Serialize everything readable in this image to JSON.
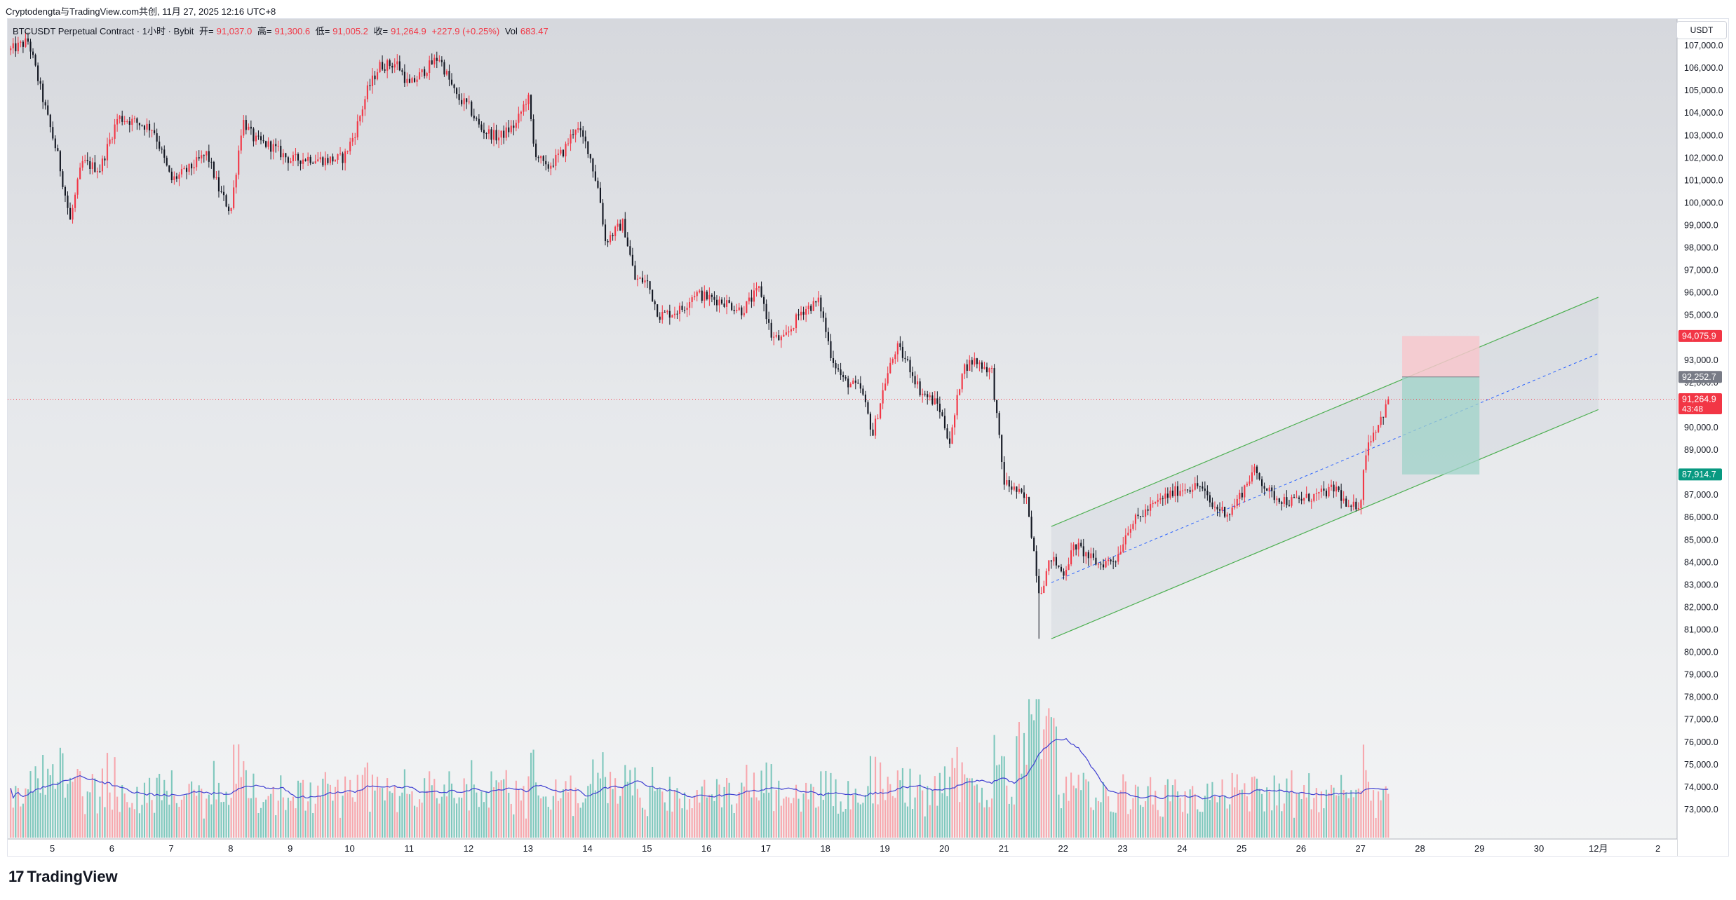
{
  "header": {
    "attribution": "Cryptodengta与TradingView.com共创, 11月 27, 2025 12:16 UTC+8"
  },
  "legend": {
    "symbol": "BTCUSDT Perpetual Contract · 1小时 · Bybit",
    "open_label": "开=",
    "open_value": "91,037.0",
    "high_label": "高=",
    "high_value": "91,300.6",
    "low_label": "低=",
    "low_value": "91,005.2",
    "close_label": "收=",
    "close_value": "91,264.9",
    "change": "+227.9 (+0.25%)",
    "vol_label": "Vol",
    "vol_value": "683.47"
  },
  "currency_button": "USDT",
  "brand": {
    "logo": "17",
    "name": "TradingView"
  },
  "price_tags": {
    "stop": {
      "text": "94,075.9",
      "value": 94075.9,
      "color": "#f23645"
    },
    "entry": {
      "text": "92,252.7",
      "value": 92252.7,
      "color": "#787b86"
    },
    "last": {
      "text": "91,264.9",
      "countdown": "43:48",
      "value": 91264.9,
      "color": "#f23645"
    },
    "target": {
      "text": "87,914.7",
      "value": 87914.7,
      "color": "#089981"
    }
  },
  "colors": {
    "up": "#f23645",
    "down": "#131722",
    "vol_up": "#f7a7ad",
    "vol_down": "#7fc8bd",
    "vol_ma": "#3f3fd1",
    "channel": "#4caf50",
    "stop_zone": "#f7c7cc",
    "target_zone": "#9fd3c8"
  },
  "chart_data": {
    "type": "candlestick",
    "timeframe": "1小时",
    "symbol": "BTCUSDT",
    "ylim": [
      72500,
      108000
    ],
    "y_ticks": [
      73000,
      74000,
      75000,
      76000,
      77000,
      78000,
      79000,
      80000,
      81000,
      82000,
      83000,
      84000,
      85000,
      86000,
      87000,
      88000,
      89000,
      90000,
      91000,
      92000,
      93000,
      94000,
      95000,
      96000,
      97000,
      98000,
      99000,
      100000,
      101000,
      102000,
      103000,
      104000,
      105000,
      106000,
      107000
    ],
    "x_ticks": [
      "5",
      "6",
      "7",
      "8",
      "9",
      "10",
      "11",
      "12",
      "13",
      "14",
      "15",
      "16",
      "17",
      "18",
      "19",
      "20",
      "21",
      "22",
      "23",
      "24",
      "25",
      "26",
      "27",
      "28",
      "29",
      "30",
      "12月",
      "2"
    ],
    "x_tick_days": [
      5,
      6,
      7,
      8,
      9,
      10,
      11,
      12,
      13,
      14,
      15,
      16,
      17,
      18,
      19,
      20,
      21,
      22,
      23,
      24,
      25,
      26,
      27,
      28,
      29,
      30,
      31,
      32
    ],
    "xlim_days": [
      4.25,
      32.3
    ],
    "price_path": [
      [
        4.3,
        106800
      ],
      [
        4.6,
        107200
      ],
      [
        4.9,
        104000
      ],
      [
        5.1,
        102000
      ],
      [
        5.3,
        99200
      ],
      [
        5.5,
        101800
      ],
      [
        5.8,
        101500
      ],
      [
        6.1,
        103800
      ],
      [
        6.4,
        103600
      ],
      [
        6.7,
        103300
      ],
      [
        7.0,
        101000
      ],
      [
        7.3,
        101500
      ],
      [
        7.6,
        102200
      ],
      [
        7.8,
        100600
      ],
      [
        8.0,
        99600
      ],
      [
        8.2,
        103700
      ],
      [
        8.4,
        102800
      ],
      [
        8.7,
        102500
      ],
      [
        9.0,
        101900
      ],
      [
        9.3,
        102000
      ],
      [
        9.6,
        101900
      ],
      [
        9.9,
        102000
      ],
      [
        10.1,
        103200
      ],
      [
        10.3,
        105000
      ],
      [
        10.5,
        106100
      ],
      [
        10.8,
        106200
      ],
      [
        11.0,
        105200
      ],
      [
        11.3,
        106000
      ],
      [
        11.5,
        106500
      ],
      [
        11.8,
        104700
      ],
      [
        12.0,
        104300
      ],
      [
        12.2,
        103300
      ],
      [
        12.5,
        102900
      ],
      [
        12.8,
        103500
      ],
      [
        13.0,
        104800
      ],
      [
        13.1,
        102400
      ],
      [
        13.3,
        101500
      ],
      [
        13.6,
        102300
      ],
      [
        13.8,
        103400
      ],
      [
        14.0,
        102500
      ],
      [
        14.2,
        100400
      ],
      [
        14.3,
        98300
      ],
      [
        14.6,
        99100
      ],
      [
        14.8,
        96600
      ],
      [
        15.0,
        96500
      ],
      [
        15.2,
        95000
      ],
      [
        15.4,
        95100
      ],
      [
        15.6,
        95300
      ],
      [
        15.8,
        96000
      ],
      [
        16.0,
        95800
      ],
      [
        16.3,
        95600
      ],
      [
        16.6,
        95200
      ],
      [
        16.9,
        96200
      ],
      [
        17.1,
        94000
      ],
      [
        17.3,
        93900
      ],
      [
        17.6,
        95200
      ],
      [
        17.9,
        95600
      ],
      [
        18.1,
        93200
      ],
      [
        18.3,
        92100
      ],
      [
        18.6,
        91700
      ],
      [
        18.8,
        89700
      ],
      [
        19.0,
        92000
      ],
      [
        19.2,
        93600
      ],
      [
        19.4,
        92800
      ],
      [
        19.6,
        91600
      ],
      [
        19.9,
        91000
      ],
      [
        20.1,
        89300
      ],
      [
        20.3,
        92600
      ],
      [
        20.5,
        93000
      ],
      [
        20.8,
        92500
      ],
      [
        21.0,
        87600
      ],
      [
        21.2,
        87200
      ],
      [
        21.4,
        86700
      ],
      [
        21.6,
        82600
      ],
      [
        21.8,
        84200
      ],
      [
        22.0,
        83500
      ],
      [
        22.2,
        84800
      ],
      [
        22.4,
        84300
      ],
      [
        22.6,
        83900
      ],
      [
        22.9,
        84200
      ],
      [
        23.1,
        85600
      ],
      [
        23.4,
        86300
      ],
      [
        23.7,
        86900
      ],
      [
        24.0,
        87300
      ],
      [
        24.3,
        87400
      ],
      [
        24.5,
        86500
      ],
      [
        24.8,
        86200
      ],
      [
        25.0,
        87100
      ],
      [
        25.2,
        88100
      ],
      [
        25.5,
        87000
      ],
      [
        25.8,
        86700
      ],
      [
        26.0,
        86800
      ],
      [
        26.3,
        87000
      ],
      [
        26.6,
        87300
      ],
      [
        26.8,
        86300
      ],
      [
        27.0,
        86700
      ],
      [
        27.1,
        89200
      ],
      [
        27.3,
        90200
      ],
      [
        27.5,
        91265
      ]
    ],
    "volume_range": [
      0,
      1000
    ],
    "channel": {
      "upper_start": [
        21.8,
        85600
      ],
      "upper_end": [
        31.0,
        95800
      ],
      "lower_start": [
        21.8,
        80600
      ],
      "lower_end": [
        31.0,
        90800
      ],
      "midline_start": [
        21.8,
        83100
      ],
      "midline_end": [
        31.0,
        93300
      ]
    },
    "position": {
      "start_day": 27.7,
      "end_day": 29.0,
      "entry": 92252.7,
      "stop": 94075.9,
      "target": 87914.7
    },
    "last_price": 91264.9
  }
}
